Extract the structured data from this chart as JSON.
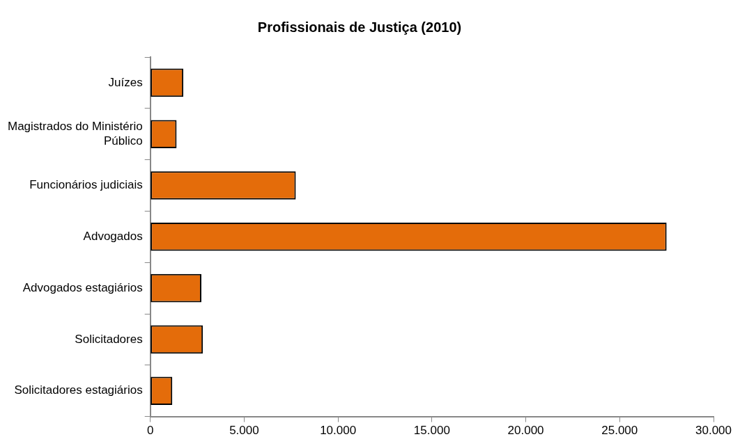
{
  "chart_data": {
    "type": "bar",
    "orientation": "horizontal",
    "title": "Profissionais de Justiça (2010)",
    "categories": [
      "Juízes",
      "Magistrados do Ministério Público",
      "Funcionários judiciais",
      "Advogados",
      "Advogados estagiários",
      "Solicitadores",
      "Solicitadores estagiários"
    ],
    "values": [
      1760,
      1400,
      7750,
      27500,
      2720,
      2800,
      1170
    ],
    "color": "#e46c0a",
    "xlim": [
      0,
      30000
    ],
    "xticks": [
      0,
      {
        "value": 5000,
        "label": "5.000"
      },
      {
        "value": 10000,
        "label": "10.000"
      },
      {
        "value": 15000,
        "label": "15.000"
      },
      {
        "value": 20000,
        "label": "20.000"
      },
      {
        "value": 25000,
        "label": "25.000"
      },
      {
        "value": 30000,
        "label": "30.000"
      }
    ],
    "grid": false,
    "legend": false
  }
}
